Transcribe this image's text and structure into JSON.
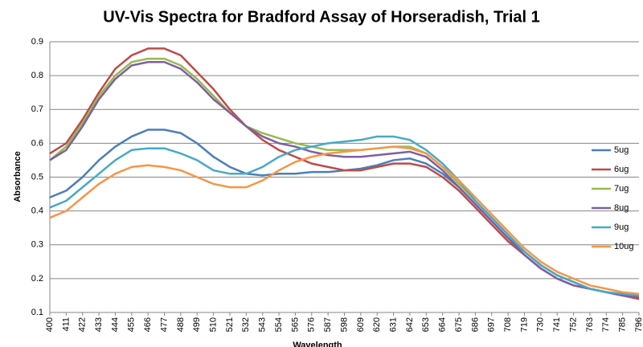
{
  "chart_data": {
    "type": "line",
    "title": "UV-Vis Spectra for Bradford Assay of Horseradish, Trial 1",
    "x_label": "Wavelength",
    "y_label": "Absorbance",
    "categories": [
      400,
      411,
      422,
      433,
      444,
      455,
      466,
      477,
      488,
      499,
      510,
      521,
      532,
      543,
      554,
      565,
      576,
      587,
      598,
      609,
      620,
      631,
      642,
      653,
      664,
      675,
      686,
      697,
      708,
      719,
      730,
      741,
      752,
      763,
      774,
      785,
      796
    ],
    "ylim": [
      0.1,
      0.9
    ],
    "yticks": [
      0.1,
      0.2,
      0.3,
      0.4,
      0.5,
      0.6,
      0.7,
      0.8,
      0.9
    ],
    "grid": true,
    "series": [
      {
        "name": "5ug",
        "color": "#4a7ebb",
        "values": [
          0.44,
          0.46,
          0.5,
          0.55,
          0.59,
          0.62,
          0.64,
          0.64,
          0.63,
          0.6,
          0.56,
          0.53,
          0.51,
          0.505,
          0.51,
          0.51,
          0.515,
          0.515,
          0.52,
          0.525,
          0.535,
          0.55,
          0.555,
          0.54,
          0.51,
          0.47,
          0.42,
          0.37,
          0.32,
          0.28,
          0.24,
          0.21,
          0.19,
          0.17,
          0.16,
          0.15,
          0.14
        ]
      },
      {
        "name": "6ug",
        "color": "#be4b48",
        "values": [
          0.57,
          0.6,
          0.67,
          0.75,
          0.82,
          0.86,
          0.88,
          0.88,
          0.86,
          0.81,
          0.76,
          0.7,
          0.65,
          0.61,
          0.58,
          0.56,
          0.54,
          0.53,
          0.52,
          0.52,
          0.53,
          0.54,
          0.54,
          0.53,
          0.5,
          0.46,
          0.41,
          0.36,
          0.31,
          0.27,
          0.23,
          0.2,
          0.18,
          0.17,
          0.16,
          0.15,
          0.14
        ]
      },
      {
        "name": "7ug",
        "color": "#98b954",
        "values": [
          0.55,
          0.59,
          0.66,
          0.74,
          0.8,
          0.84,
          0.85,
          0.85,
          0.83,
          0.79,
          0.74,
          0.69,
          0.65,
          0.63,
          0.615,
          0.6,
          0.59,
          0.58,
          0.58,
          0.58,
          0.585,
          0.59,
          0.59,
          0.57,
          0.53,
          0.48,
          0.43,
          0.38,
          0.33,
          0.28,
          0.24,
          0.21,
          0.19,
          0.17,
          0.16,
          0.155,
          0.15
        ]
      },
      {
        "name": "8ug",
        "color": "#7d60a0",
        "values": [
          0.55,
          0.58,
          0.65,
          0.73,
          0.79,
          0.83,
          0.84,
          0.84,
          0.82,
          0.78,
          0.73,
          0.69,
          0.65,
          0.62,
          0.6,
          0.59,
          0.575,
          0.565,
          0.56,
          0.56,
          0.565,
          0.57,
          0.575,
          0.56,
          0.52,
          0.47,
          0.42,
          0.37,
          0.32,
          0.27,
          0.23,
          0.2,
          0.18,
          0.17,
          0.16,
          0.15,
          0.145
        ]
      },
      {
        "name": "9ug",
        "color": "#46aac5",
        "values": [
          0.41,
          0.43,
          0.47,
          0.51,
          0.55,
          0.58,
          0.585,
          0.585,
          0.57,
          0.55,
          0.52,
          0.51,
          0.51,
          0.53,
          0.56,
          0.58,
          0.59,
          0.6,
          0.605,
          0.61,
          0.62,
          0.62,
          0.61,
          0.58,
          0.54,
          0.49,
          0.43,
          0.38,
          0.33,
          0.28,
          0.24,
          0.21,
          0.19,
          0.17,
          0.16,
          0.155,
          0.15
        ]
      },
      {
        "name": "10ug",
        "color": "#f79646",
        "values": [
          0.38,
          0.4,
          0.44,
          0.48,
          0.51,
          0.53,
          0.535,
          0.53,
          0.52,
          0.5,
          0.48,
          0.47,
          0.47,
          0.49,
          0.52,
          0.545,
          0.56,
          0.57,
          0.575,
          0.58,
          0.585,
          0.59,
          0.585,
          0.57,
          0.53,
          0.49,
          0.44,
          0.39,
          0.34,
          0.29,
          0.25,
          0.22,
          0.2,
          0.18,
          0.17,
          0.16,
          0.155
        ]
      }
    ]
  }
}
